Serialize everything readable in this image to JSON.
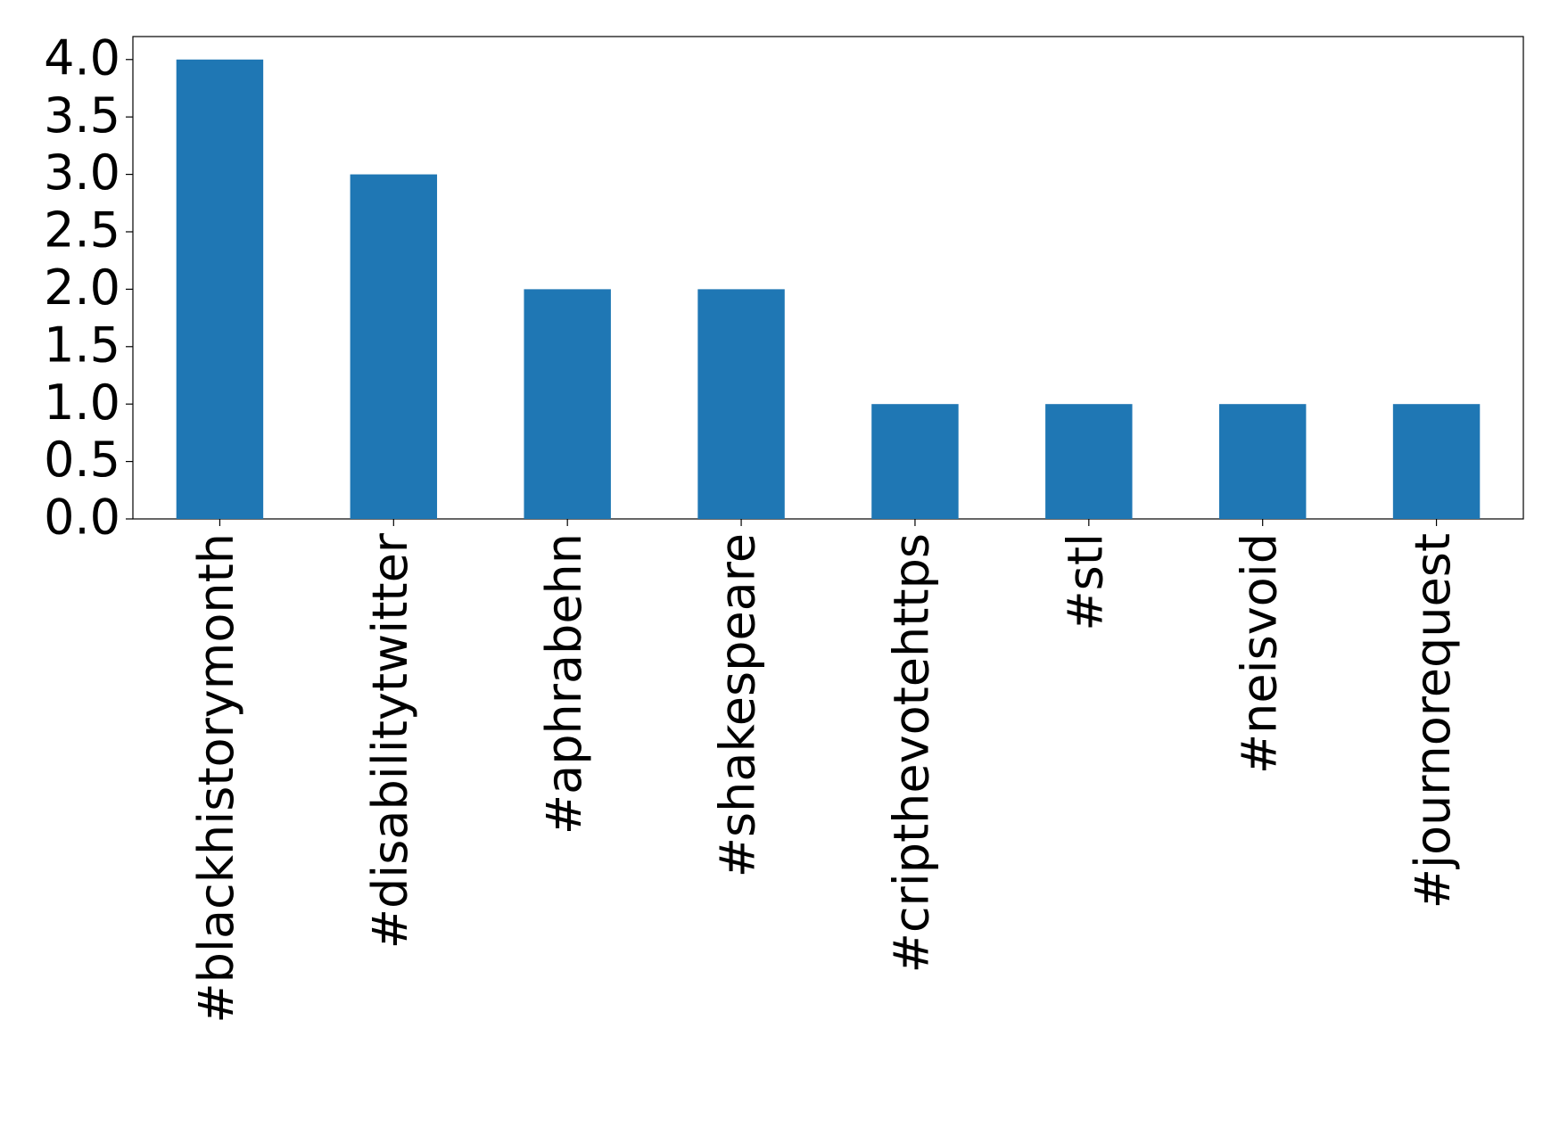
{
  "chart_data": {
    "type": "bar",
    "categories": [
      "#blackhistorymonth",
      "#disabilitytwitter",
      "#aphrabehn",
      "#shakespeare",
      "#cripthevotehttps",
      "#stl",
      "#neisvoid",
      "#journorequest"
    ],
    "values": [
      4,
      3,
      2,
      2,
      1,
      1,
      1,
      1
    ],
    "color": "#1f77b4",
    "ylim": [
      0,
      4.2
    ],
    "yticks": [
      {
        "value": 0,
        "label": "0.0"
      },
      {
        "value": 0.5,
        "label": "0.5"
      },
      {
        "value": 1,
        "label": "1.0"
      },
      {
        "value": 1.5,
        "label": "1.5"
      },
      {
        "value": 2,
        "label": "2.0"
      },
      {
        "value": 2.5,
        "label": "2.5"
      },
      {
        "value": 3,
        "label": "3.0"
      },
      {
        "value": 3.5,
        "label": "3.5"
      },
      {
        "value": 4,
        "label": "4.0"
      }
    ],
    "grid": false
  }
}
